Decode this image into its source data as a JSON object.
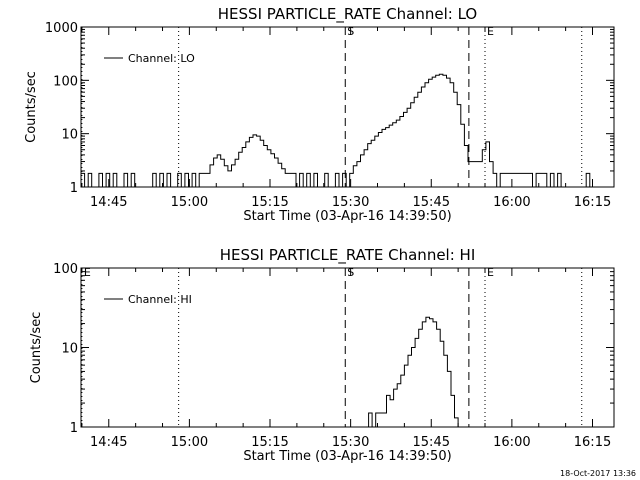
{
  "footer_timestamp": "18-Oct-2017 13:36",
  "chart_data": [
    {
      "type": "line",
      "title": "HESSI PARTICLE_RATE Channel: LO",
      "xlabel": "Start Time (03-Apr-16 14:39:50)",
      "ylabel": "Counts/sec",
      "yscale": "log",
      "xlim": [
        "14:39:50",
        "16:19:00"
      ],
      "ylim": [
        1,
        1000
      ],
      "x_ticks": [
        "14:45",
        "15:00",
        "15:15",
        "15:30",
        "15:45",
        "16:00",
        "16:15"
      ],
      "y_ticks": [
        "1",
        "10",
        "100",
        "1000"
      ],
      "legend": {
        "position": "top-left",
        "label": "Channel: LO"
      },
      "markers": [
        {
          "label": "",
          "time": "14:40",
          "style": "dotted"
        },
        {
          "label": "",
          "time": "14:58",
          "style": "dotted"
        },
        {
          "label": "S",
          "time": "15:29",
          "style": "dashed"
        },
        {
          "label": "",
          "time": "15:52",
          "style": "dashed"
        },
        {
          "label": "E",
          "time": "15:55",
          "style": "dotted"
        },
        {
          "label": "",
          "time": "16:13",
          "style": "dotted"
        }
      ],
      "series": [
        {
          "name": "Channel: LO",
          "points": [
            [
              "14:39:50",
              1.8
            ],
            [
              "14:40:30",
              1
            ],
            [
              "14:41:10",
              1.8
            ],
            [
              "14:41:50",
              1
            ],
            [
              "14:42:30",
              1
            ],
            [
              "14:43:10",
              1.8
            ],
            [
              "14:43:50",
              1
            ],
            [
              "14:44:30",
              1.8
            ],
            [
              "14:45:10",
              1
            ],
            [
              "14:45:50",
              1.8
            ],
            [
              "14:46:30",
              1
            ],
            [
              "14:47:10",
              1
            ],
            [
              "14:47:50",
              1.8
            ],
            [
              "14:48:30",
              1
            ],
            [
              "14:49:10",
              1.8
            ],
            [
              "14:49:50",
              1
            ],
            [
              "14:50:30",
              1
            ],
            [
              "14:51:10",
              1
            ],
            [
              "14:51:50",
              1
            ],
            [
              "14:52:30",
              1
            ],
            [
              "14:53:10",
              1.8
            ],
            [
              "14:53:50",
              1
            ],
            [
              "14:54:30",
              1.8
            ],
            [
              "14:55:10",
              1
            ],
            [
              "14:55:50",
              1.8
            ],
            [
              "14:56:30",
              1
            ],
            [
              "14:57:10",
              1
            ],
            [
              "14:57:50",
              1.8
            ],
            [
              "14:58:30",
              1
            ],
            [
              "14:59:10",
              1.8
            ],
            [
              "14:59:50",
              1
            ],
            [
              "15:00:30",
              1.8
            ],
            [
              "15:01:10",
              1
            ],
            [
              "15:01:50",
              1.8
            ],
            [
              "15:02:30",
              1.8
            ],
            [
              "15:03:10",
              1.8
            ],
            [
              "15:03:50",
              2.6
            ],
            [
              "15:04:30",
              3.5
            ],
            [
              "15:05:10",
              4
            ],
            [
              "15:05:50",
              3.3
            ],
            [
              "15:06:30",
              2.5
            ],
            [
              "15:07:10",
              2
            ],
            [
              "15:07:50",
              2.6
            ],
            [
              "15:08:30",
              3.3
            ],
            [
              "15:09:10",
              4.5
            ],
            [
              "15:09:50",
              5.5
            ],
            [
              "15:10:30",
              7
            ],
            [
              "15:11:10",
              8.5
            ],
            [
              "15:11:50",
              9.5
            ],
            [
              "15:12:30",
              9
            ],
            [
              "15:13:10",
              7.5
            ],
            [
              "15:13:50",
              6
            ],
            [
              "15:14:30",
              5
            ],
            [
              "15:15:10",
              4.2
            ],
            [
              "15:15:50",
              3.5
            ],
            [
              "15:16:30",
              2.8
            ],
            [
              "15:17:10",
              2.2
            ],
            [
              "15:17:50",
              1.8
            ],
            [
              "15:18:30",
              1.8
            ],
            [
              "15:19:10",
              1.8
            ],
            [
              "15:19:50",
              1
            ],
            [
              "15:20:30",
              1.8
            ],
            [
              "15:21:10",
              1
            ],
            [
              "15:21:50",
              1.8
            ],
            [
              "15:22:30",
              1
            ],
            [
              "15:23:10",
              1.8
            ],
            [
              "15:23:50",
              1
            ],
            [
              "15:24:30",
              1
            ],
            [
              "15:25:10",
              1.8
            ],
            [
              "15:25:50",
              1
            ],
            [
              "15:26:30",
              1
            ],
            [
              "15:27:10",
              1.8
            ],
            [
              "15:27:50",
              1
            ],
            [
              "15:28:30",
              1.8
            ],
            [
              "15:29:10",
              1
            ],
            [
              "15:29:50",
              1.8
            ],
            [
              "15:30:30",
              2.5
            ],
            [
              "15:31:10",
              3
            ],
            [
              "15:31:50",
              4
            ],
            [
              "15:32:30",
              5
            ],
            [
              "15:33:10",
              6.5
            ],
            [
              "15:33:50",
              7.5
            ],
            [
              "15:34:30",
              9
            ],
            [
              "15:35:10",
              10.5
            ],
            [
              "15:35:50",
              12
            ],
            [
              "15:36:30",
              13
            ],
            [
              "15:37:10",
              14.5
            ],
            [
              "15:37:50",
              16
            ],
            [
              "15:38:30",
              18
            ],
            [
              "15:39:10",
              21
            ],
            [
              "15:39:50",
              25
            ],
            [
              "15:40:30",
              30
            ],
            [
              "15:41:10",
              38
            ],
            [
              "15:41:50",
              48
            ],
            [
              "15:42:30",
              60
            ],
            [
              "15:43:10",
              75
            ],
            [
              "15:43:50",
              90
            ],
            [
              "15:44:30",
              105
            ],
            [
              "15:45:10",
              115
            ],
            [
              "15:45:50",
              125
            ],
            [
              "15:46:30",
              130
            ],
            [
              "15:47:10",
              125
            ],
            [
              "15:47:50",
              110
            ],
            [
              "15:48:30",
              90
            ],
            [
              "15:49:10",
              60
            ],
            [
              "15:49:50",
              35
            ],
            [
              "15:50:30",
              15
            ],
            [
              "15:51:10",
              6
            ],
            [
              "15:51:50",
              3
            ],
            [
              "15:52:30",
              3
            ],
            [
              "15:53:10",
              3
            ],
            [
              "15:53:50",
              3
            ],
            [
              "15:54:30",
              5
            ],
            [
              "15:55:10",
              7
            ],
            [
              "15:55:50",
              3
            ],
            [
              "15:56:30",
              1.8
            ],
            [
              "15:57:10",
              1
            ],
            [
              "15:57:50",
              1.8
            ],
            [
              "15:58:30",
              1.8
            ],
            [
              "15:59:10",
              1.8
            ],
            [
              "15:59:50",
              1.8
            ],
            [
              "16:00:30",
              1.8
            ],
            [
              "16:01:10",
              1.8
            ],
            [
              "16:01:50",
              1.8
            ],
            [
              "16:02:30",
              1.8
            ],
            [
              "16:03:10",
              1.8
            ],
            [
              "16:03:50",
              1
            ],
            [
              "16:04:30",
              1.8
            ],
            [
              "16:05:10",
              1.8
            ],
            [
              "16:05:50",
              1.8
            ],
            [
              "16:06:30",
              1
            ],
            [
              "16:07:10",
              1.8
            ],
            [
              "16:07:50",
              1
            ],
            [
              "16:08:30",
              1.8
            ],
            [
              "16:09:10",
              1
            ],
            [
              "16:09:50",
              1
            ],
            [
              "16:10:30",
              1
            ],
            [
              "16:11:10",
              1
            ],
            [
              "16:11:50",
              1
            ],
            [
              "16:12:30",
              1
            ],
            [
              "16:13:10",
              1
            ],
            [
              "16:13:50",
              1.8
            ],
            [
              "16:14:30",
              1
            ]
          ]
        }
      ]
    },
    {
      "type": "line",
      "title": "HESSI PARTICLE_RATE Channel: HI",
      "xlabel": "Start Time (03-Apr-16 14:39:50)",
      "ylabel": "Counts/sec",
      "yscale": "log",
      "xlim": [
        "14:39:50",
        "16:19:00"
      ],
      "ylim": [
        1,
        100
      ],
      "x_ticks": [
        "14:45",
        "15:00",
        "15:15",
        "15:30",
        "15:45",
        "16:00",
        "16:15"
      ],
      "y_ticks": [
        "1",
        "10",
        "100"
      ],
      "legend": {
        "position": "top-left",
        "label": "Channel: HI"
      },
      "markers": [
        {
          "label": "E",
          "time": "14:40",
          "style": "dotted"
        },
        {
          "label": "",
          "time": "14:58",
          "style": "dotted"
        },
        {
          "label": "S",
          "time": "15:29",
          "style": "dashed"
        },
        {
          "label": "",
          "time": "15:52",
          "style": "dashed"
        },
        {
          "label": "E",
          "time": "15:55",
          "style": "dotted"
        },
        {
          "label": "",
          "time": "16:13",
          "style": "dotted"
        }
      ],
      "series": [
        {
          "name": "Channel: HI",
          "points": [
            [
              "15:32:40",
              1
            ],
            [
              "15:33:20",
              1.5
            ],
            [
              "15:34:00",
              1
            ],
            [
              "15:34:40",
              1.5
            ],
            [
              "15:35:20",
              1.5
            ],
            [
              "15:36:00",
              1.5
            ],
            [
              "15:36:40",
              2.5
            ],
            [
              "15:37:20",
              2.2
            ],
            [
              "15:38:00",
              3
            ],
            [
              "15:38:40",
              3.5
            ],
            [
              "15:39:20",
              4.5
            ],
            [
              "15:40:00",
              6
            ],
            [
              "15:40:40",
              8
            ],
            [
              "15:41:20",
              10
            ],
            [
              "15:42:00",
              13
            ],
            [
              "15:42:40",
              17
            ],
            [
              "15:43:20",
              21
            ],
            [
              "15:44:00",
              24
            ],
            [
              "15:44:40",
              23
            ],
            [
              "15:45:20",
              21
            ],
            [
              "15:46:00",
              17
            ],
            [
              "15:46:40",
              12
            ],
            [
              "15:47:20",
              8
            ],
            [
              "15:48:00",
              5
            ],
            [
              "15:48:40",
              2.5
            ],
            [
              "15:49:20",
              1.3
            ],
            [
              "15:50:00",
              1
            ]
          ]
        }
      ]
    }
  ]
}
